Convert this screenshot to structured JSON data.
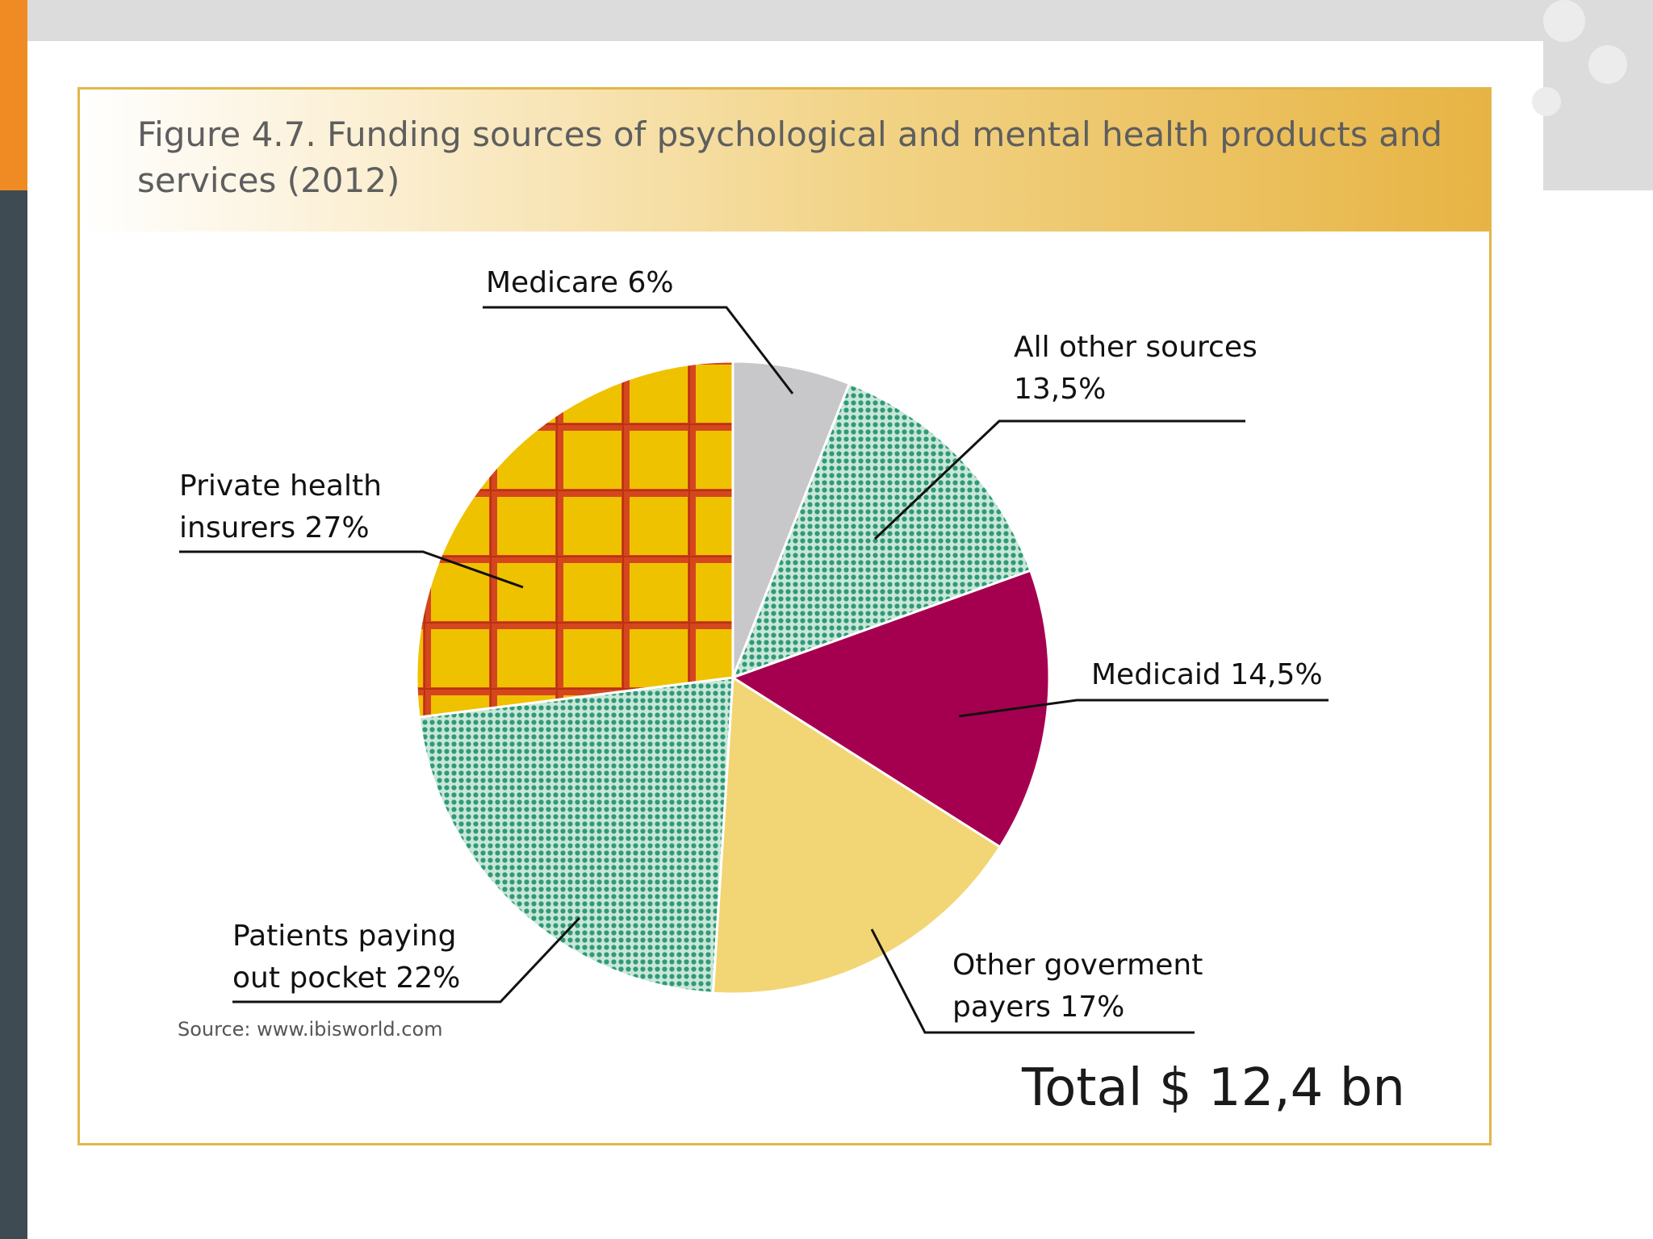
{
  "figure": {
    "title": "Figure 4.7. Funding sources of psychological and mental health products and services (2012)",
    "source": "Source: www.ibisworld.com",
    "total": "Total $ 12,4 bn"
  },
  "chart_data": {
    "type": "pie",
    "title": "Figure 4.7. Funding sources of psychological and mental health products and services (2012)",
    "total": "Total $ 12,4 bn",
    "unit": "%",
    "slices": [
      {
        "name": "Medicare",
        "value": 6,
        "label_lines": [
          "Medicare 6%"
        ],
        "color": "#c8c8ca",
        "pattern": "solid"
      },
      {
        "name": "All other sources",
        "value": 13.5,
        "label_lines": [
          "All other sources",
          "13,5%"
        ],
        "color": "#3f9f86",
        "pattern": "dots"
      },
      {
        "name": "Medicaid",
        "value": 14.5,
        "label_lines": [
          "Medicaid 14,5%"
        ],
        "color": "#a5004f",
        "pattern": "solid"
      },
      {
        "name": "Other goverment payers",
        "value": 17,
        "label_lines": [
          "Other goverment",
          "payers 17%"
        ],
        "color": "#f2d675",
        "pattern": "solid"
      },
      {
        "name": "Patients paying out pocket",
        "value": 22,
        "label_lines": [
          "Patients paying",
          "out pocket 22%"
        ],
        "color": "#3f9f86",
        "pattern": "dots"
      },
      {
        "name": "Private health insurers",
        "value": 27,
        "label_lines": [
          "Private health",
          "insurers 27%"
        ],
        "color": "#edc000",
        "pattern": "grid"
      }
    ]
  }
}
